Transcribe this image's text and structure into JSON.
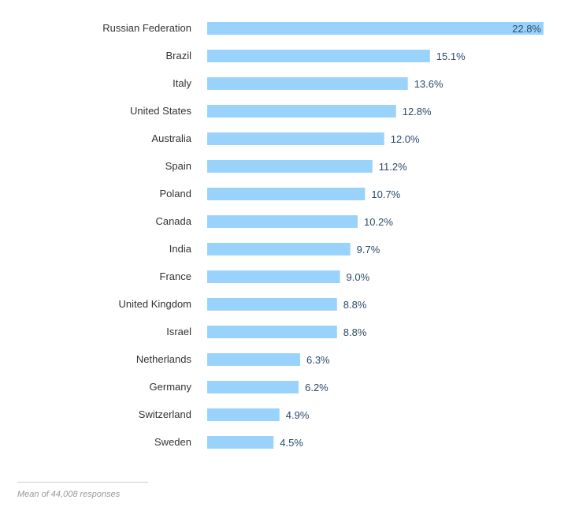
{
  "chart_data": {
    "type": "bar",
    "orientation": "horizontal",
    "categories": [
      "Russian Federation",
      "Brazil",
      "Italy",
      "United States",
      "Australia",
      "Spain",
      "Poland",
      "Canada",
      "India",
      "France",
      "United Kingdom",
      "Israel",
      "Netherlands",
      "Germany",
      "Switzerland",
      "Sweden"
    ],
    "values": [
      22.8,
      15.1,
      13.6,
      12.8,
      12.0,
      11.2,
      10.7,
      10.2,
      9.7,
      9.0,
      8.8,
      8.8,
      6.3,
      6.2,
      4.9,
      4.5
    ],
    "labels": [
      "22.8%",
      "15.1%",
      "13.6%",
      "12.8%",
      "12.0%",
      "11.2%",
      "10.7%",
      "10.2%",
      "9.7%",
      "9.0%",
      "8.8%",
      "8.8%",
      "6.3%",
      "6.2%",
      "4.9%",
      "4.5%"
    ],
    "xlim": [
      0,
      22.8
    ],
    "unit": "%",
    "bar_color": "#99d3fb",
    "grid": false
  },
  "footnote": "Mean of 44,008 responses"
}
